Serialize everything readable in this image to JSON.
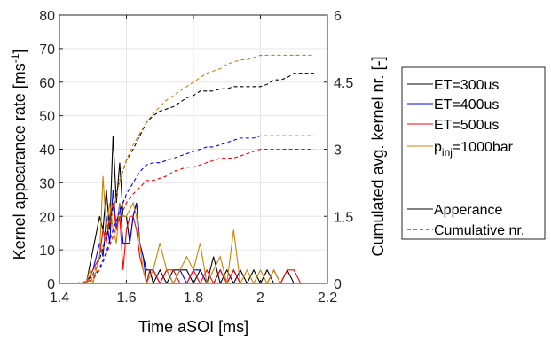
{
  "chart_data": {
    "type": "line",
    "title": "",
    "xlabel": "Time aSOI [ms]",
    "ylabel_left": "Kernel appearance rate [ms",
    "ylabel_left_sup": "-1",
    "ylabel_left_end": "]",
    "ylabel_right": "Cumulated avg. kernel nr. [-]",
    "xlim": [
      1.4,
      2.2
    ],
    "ylim_left": [
      0,
      80
    ],
    "ylim_right": [
      0,
      6
    ],
    "xticks": [
      1.4,
      1.6,
      1.8,
      2.0,
      2.2
    ],
    "xtick_labels": [
      "1.4",
      "1.6",
      "1.8",
      "2",
      "2.2"
    ],
    "yticks_left": [
      0,
      10,
      20,
      30,
      40,
      50,
      60,
      70,
      80
    ],
    "ytick_labels_left": [
      "0",
      "10",
      "20",
      "30",
      "40",
      "50",
      "60",
      "70",
      "80"
    ],
    "yticks_right": [
      0,
      1.5,
      3,
      4.5,
      6
    ],
    "ytick_labels_right": [
      "0",
      "1.5",
      "3",
      "4.5",
      "6"
    ],
    "grid": true,
    "legend_placement": "outside-right",
    "legend": [
      {
        "label": "ET=300us",
        "color": "#000000",
        "style": "solid"
      },
      {
        "label": "ET=400us",
        "color": "#0000ff",
        "style": "solid"
      },
      {
        "label": "ET=500us",
        "color": "#ff0000",
        "style": "solid"
      },
      {
        "label": "p",
        "sub": "inj",
        "label_end": "=1000bar",
        "color": "#cc8400",
        "style": "solid"
      },
      {
        "label": "",
        "color": "",
        "style": "none"
      },
      {
        "label": "Apperance",
        "color": "#000000",
        "style": "solid"
      },
      {
        "label": "Cumulative nr.",
        "color": "#000000",
        "style": "dashed"
      }
    ],
    "series": [
      {
        "axis": "left",
        "style": "solid",
        "color": "#000000",
        "x": [
          1.44,
          1.48,
          1.5,
          1.52,
          1.53,
          1.54,
          1.55,
          1.56,
          1.57,
          1.58,
          1.59,
          1.6,
          1.61,
          1.62,
          1.63,
          1.64,
          1.65,
          1.66,
          1.67,
          1.68,
          1.7,
          1.72,
          1.74,
          1.76,
          1.78,
          1.8,
          1.82,
          1.84,
          1.86,
          1.88,
          1.9,
          1.92,
          1.94,
          1.96,
          1.98,
          2.0,
          2.02,
          2.04,
          2.06,
          2.08,
          2.1,
          2.12,
          2.14,
          2.16
        ],
        "y": [
          0,
          0,
          10,
          20,
          16,
          28,
          16,
          44,
          24,
          36,
          20,
          20,
          12,
          20,
          24,
          12,
          8,
          4,
          4,
          0,
          4,
          0,
          4,
          4,
          4,
          0,
          4,
          0,
          8,
          0,
          4,
          0,
          4,
          0,
          4,
          0,
          4,
          0,
          0,
          4,
          0,
          0,
          0,
          0
        ]
      },
      {
        "axis": "left",
        "style": "solid",
        "color": "#0000ff",
        "x": [
          1.44,
          1.48,
          1.5,
          1.52,
          1.53,
          1.54,
          1.55,
          1.56,
          1.57,
          1.58,
          1.59,
          1.6,
          1.61,
          1.62,
          1.63,
          1.64,
          1.65,
          1.66,
          1.67,
          1.68,
          1.7,
          1.72,
          1.74,
          1.76,
          1.78,
          1.8,
          1.82,
          1.84,
          1.86,
          1.88,
          1.9,
          1.92,
          1.94,
          1.96,
          1.98,
          2.0,
          2.02,
          2.04
        ],
        "y": [
          0,
          0,
          4,
          12,
          8,
          20,
          12,
          28,
          16,
          24,
          12,
          12,
          12,
          20,
          24,
          12,
          8,
          0,
          4,
          4,
          0,
          4,
          0,
          4,
          0,
          4,
          4,
          0,
          0,
          4,
          0,
          4,
          0,
          0,
          0,
          0,
          0,
          0
        ]
      },
      {
        "axis": "left",
        "style": "solid",
        "color": "#ff0000",
        "x": [
          1.44,
          1.48,
          1.5,
          1.52,
          1.53,
          1.54,
          1.55,
          1.56,
          1.57,
          1.58,
          1.59,
          1.6,
          1.61,
          1.62,
          1.63,
          1.64,
          1.65,
          1.66,
          1.67,
          1.68,
          1.7,
          1.72,
          1.74,
          1.76,
          1.78,
          1.8,
          1.82,
          1.84,
          1.86,
          1.88,
          1.9,
          1.92,
          1.94,
          1.96,
          1.98,
          2.0,
          2.02,
          2.04,
          2.06,
          2.08,
          2.1,
          2.12,
          2.14,
          2.16
        ],
        "y": [
          0,
          0,
          4,
          8,
          16,
          12,
          20,
          24,
          16,
          20,
          4,
          16,
          20,
          20,
          16,
          8,
          4,
          0,
          4,
          4,
          0,
          4,
          4,
          0,
          0,
          4,
          0,
          4,
          0,
          4,
          0,
          4,
          0,
          0,
          0,
          0,
          0,
          4,
          0,
          4,
          4,
          0,
          0,
          0
        ]
      },
      {
        "axis": "left",
        "style": "solid",
        "color": "#cc8400",
        "x": [
          1.44,
          1.48,
          1.49,
          1.5,
          1.52,
          1.53,
          1.54,
          1.55,
          1.56,
          1.57,
          1.58,
          1.59,
          1.6,
          1.62,
          1.63,
          1.64,
          1.65,
          1.66,
          1.68,
          1.7,
          1.72,
          1.74,
          1.76,
          1.78,
          1.8,
          1.82,
          1.84,
          1.86,
          1.88,
          1.9,
          1.92,
          1.94,
          1.96,
          1.98,
          2.0,
          2.02,
          2.04,
          2.06,
          2.08,
          2.1,
          2.12,
          2.14,
          2.16
        ],
        "y": [
          0,
          0,
          4,
          0,
          8,
          32,
          16,
          24,
          16,
          12,
          24,
          20,
          20,
          24,
          20,
          12,
          4,
          0,
          4,
          12,
          4,
          0,
          4,
          8,
          4,
          12,
          0,
          4,
          8,
          0,
          16,
          0,
          4,
          0,
          4,
          0,
          4,
          0,
          0,
          0,
          0,
          0,
          0
        ]
      },
      {
        "axis": "right",
        "style": "dashed",
        "color": "#000000",
        "x": [
          1.45,
          1.48,
          1.5,
          1.52,
          1.54,
          1.56,
          1.58,
          1.6,
          1.62,
          1.64,
          1.66,
          1.68,
          1.7,
          1.72,
          1.74,
          1.76,
          1.78,
          1.8,
          1.82,
          1.84,
          1.86,
          1.88,
          1.9,
          1.92,
          1.94,
          1.96,
          1.98,
          2.0,
          2.02,
          2.04,
          2.06,
          2.08,
          2.1,
          2.12,
          2.14,
          2.16
        ],
        "y": [
          0,
          0.05,
          0.2,
          0.55,
          1.0,
          1.7,
          2.3,
          2.75,
          3.0,
          3.3,
          3.6,
          3.75,
          3.85,
          3.9,
          3.95,
          4.05,
          4.15,
          4.2,
          4.3,
          4.3,
          4.3,
          4.35,
          4.35,
          4.4,
          4.4,
          4.4,
          4.4,
          4.4,
          4.45,
          4.55,
          4.55,
          4.6,
          4.7,
          4.7,
          4.7,
          4.7
        ]
      },
      {
        "axis": "right",
        "style": "dashed",
        "color": "#0000ff",
        "x": [
          1.45,
          1.48,
          1.5,
          1.52,
          1.54,
          1.56,
          1.58,
          1.6,
          1.62,
          1.64,
          1.66,
          1.68,
          1.7,
          1.72,
          1.74,
          1.76,
          1.78,
          1.8,
          1.82,
          1.84,
          1.86,
          1.88,
          1.9,
          1.92,
          1.94,
          1.96,
          1.98,
          2.0,
          2.02,
          2.04,
          2.06,
          2.08,
          2.1,
          2.12,
          2.14,
          2.16
        ],
        "y": [
          0,
          0.02,
          0.1,
          0.35,
          0.7,
          1.2,
          1.6,
          2.0,
          2.25,
          2.5,
          2.65,
          2.7,
          2.7,
          2.75,
          2.8,
          2.85,
          2.9,
          2.95,
          3.0,
          3.05,
          3.05,
          3.1,
          3.15,
          3.2,
          3.25,
          3.25,
          3.25,
          3.3,
          3.3,
          3.3,
          3.3,
          3.3,
          3.3,
          3.3,
          3.3,
          3.3
        ]
      },
      {
        "axis": "right",
        "style": "dashed",
        "color": "#ff0000",
        "x": [
          1.45,
          1.48,
          1.5,
          1.52,
          1.54,
          1.56,
          1.58,
          1.6,
          1.62,
          1.64,
          1.66,
          1.68,
          1.7,
          1.72,
          1.74,
          1.76,
          1.78,
          1.8,
          1.82,
          1.84,
          1.86,
          1.88,
          1.9,
          1.92,
          1.94,
          1.96,
          1.98,
          2.0,
          2.02,
          2.04,
          2.06,
          2.08,
          2.1,
          2.12,
          2.14,
          2.16
        ],
        "y": [
          0,
          0.02,
          0.1,
          0.3,
          0.65,
          1.05,
          1.45,
          1.8,
          2.0,
          2.15,
          2.3,
          2.3,
          2.35,
          2.4,
          2.5,
          2.55,
          2.6,
          2.6,
          2.65,
          2.7,
          2.75,
          2.8,
          2.8,
          2.8,
          2.85,
          2.9,
          2.95,
          3.0,
          3.0,
          3.0,
          3.0,
          3.0,
          3.0,
          3.0,
          3.0,
          3.0
        ]
      },
      {
        "axis": "right",
        "style": "dashed",
        "color": "#cc8400",
        "x": [
          1.45,
          1.48,
          1.5,
          1.52,
          1.54,
          1.56,
          1.58,
          1.6,
          1.62,
          1.64,
          1.66,
          1.68,
          1.7,
          1.72,
          1.74,
          1.76,
          1.78,
          1.8,
          1.82,
          1.84,
          1.86,
          1.88,
          1.9,
          1.92,
          1.94,
          1.96,
          1.98,
          2.0,
          2.02,
          2.04,
          2.06,
          2.08,
          2.1,
          2.12,
          2.14,
          2.16
        ],
        "y": [
          0,
          0.05,
          0.15,
          0.6,
          1.1,
          1.6,
          2.3,
          2.75,
          3.1,
          3.35,
          3.6,
          3.8,
          3.95,
          4.1,
          4.2,
          4.3,
          4.4,
          4.5,
          4.6,
          4.7,
          4.75,
          4.8,
          4.9,
          4.95,
          5.0,
          5.0,
          5.05,
          5.1,
          5.1,
          5.1,
          5.1,
          5.1,
          5.1,
          5.1,
          5.1,
          5.1
        ]
      }
    ]
  }
}
